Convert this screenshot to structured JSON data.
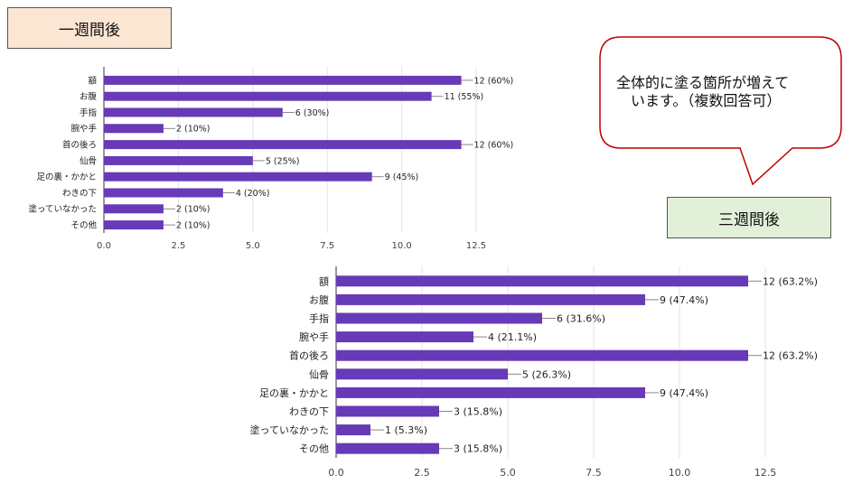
{
  "labels": {
    "one_week": "一週間後",
    "three_weeks": "三週間後"
  },
  "callout": {
    "text": "全体的に塗る箇所が増えて\n　います。（複数回答可）"
  },
  "colors": {
    "bar": "#673ab7",
    "one_week_tag": "#fbe5d3",
    "three_weeks_tag": "#e3f0d9",
    "callout_border": "#c00000"
  },
  "chart_data": [
    {
      "type": "bar",
      "orientation": "horizontal",
      "categories": [
        "額",
        "お腹",
        "手指",
        "腕や手",
        "首の後ろ",
        "仙骨",
        "足の裏・かかと",
        "わきの下",
        "塗っていなかった",
        "その他"
      ],
      "values": [
        12,
        11,
        6,
        2,
        12,
        5,
        9,
        4,
        2,
        2
      ],
      "data_labels": [
        "12 (60%)",
        "11 (55%)",
        "6 (30%)",
        "2 (10%)",
        "12 (60%)",
        "5 (25%)",
        "9 (45%)",
        "4 (20%)",
        "2 (10%)",
        "2 (10%)"
      ],
      "xlim": [
        0,
        13.5
      ],
      "xticks": [
        "0.0",
        "2.5",
        "5.0",
        "7.5",
        "10.0",
        "12.5"
      ],
      "grid": true
    },
    {
      "type": "bar",
      "orientation": "horizontal",
      "categories": [
        "額",
        "お腹",
        "手指",
        "腕や手",
        "首の後ろ",
        "仙骨",
        "足の裏・かかと",
        "わきの下",
        "塗っていなかった",
        "その他"
      ],
      "values": [
        12,
        9,
        6,
        4,
        12,
        5,
        9,
        3,
        1,
        3
      ],
      "data_labels": [
        "12 (63.2%)",
        "9 (47.4%)",
        "6 (31.6%)",
        "4 (21.1%)",
        "12 (63.2%)",
        "5 (26.3%)",
        "9 (47.4%)",
        "3 (15.8%)",
        "1 (5.3%)",
        "3 (15.8%)"
      ],
      "xlim": [
        0,
        13.5
      ],
      "xticks": [
        "0.0",
        "2.5",
        "5.0",
        "7.5",
        "10.0",
        "12.5"
      ],
      "grid": true
    }
  ]
}
